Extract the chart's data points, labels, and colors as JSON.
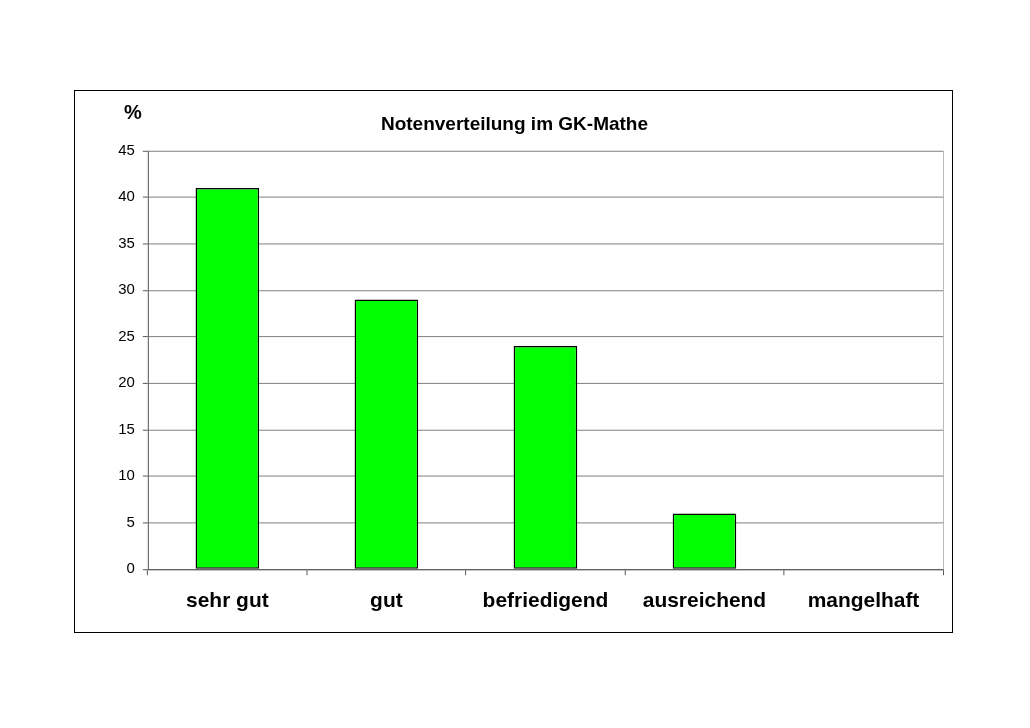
{
  "chart_data": {
    "type": "bar",
    "title": "Notenverteilung im GK-Mathe",
    "ylabel": "%",
    "categories": [
      "sehr gut",
      "gut",
      "befriedigend",
      "ausreichend",
      "mangelhaft"
    ],
    "values": [
      41,
      29,
      24,
      6,
      0
    ],
    "color": "#00ff00",
    "ylim": [
      0,
      45
    ],
    "yticks": [
      0,
      5,
      10,
      15,
      20,
      25,
      30,
      35,
      40,
      45
    ],
    "grid": "y"
  }
}
